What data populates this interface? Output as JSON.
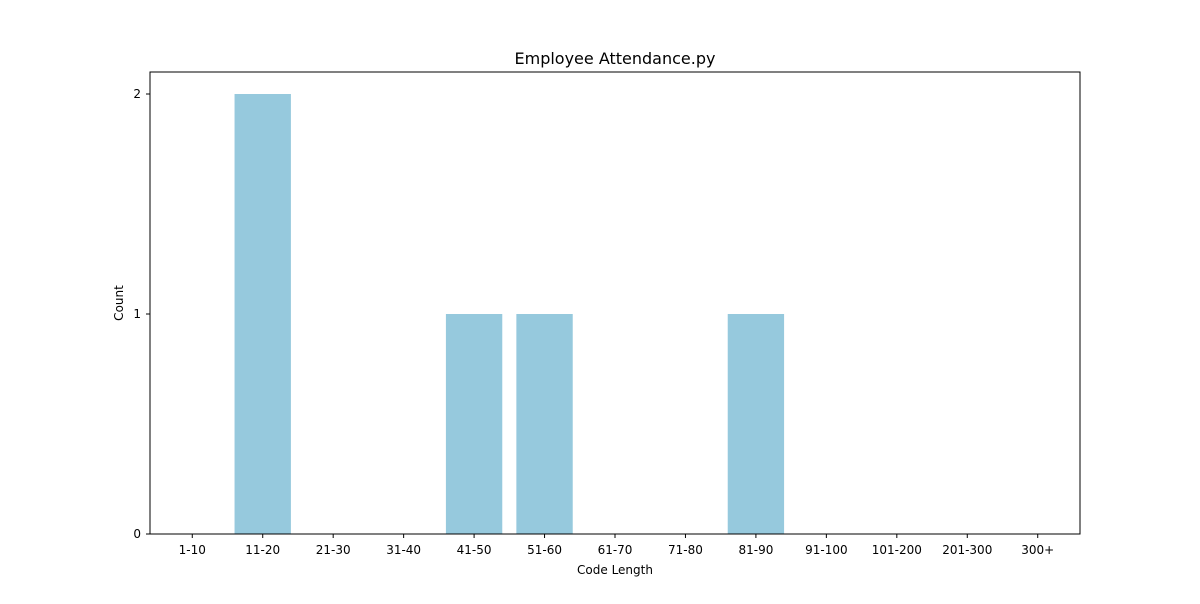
{
  "chart_data": {
    "type": "bar",
    "title": "Employee Attendance.py",
    "xlabel": "Code Length",
    "ylabel": "Count",
    "categories": [
      "1-10",
      "11-20",
      "21-30",
      "31-40",
      "41-50",
      "51-60",
      "61-70",
      "71-80",
      "81-90",
      "91-100",
      "101-200",
      "201-300",
      "300+"
    ],
    "values": [
      0,
      2,
      0,
      0,
      1,
      1,
      0,
      0,
      1,
      0,
      0,
      0,
      0
    ],
    "yticks": [
      0,
      1,
      2
    ],
    "ylim": [
      0,
      2.1
    ],
    "grid": false,
    "legend": "none",
    "bar_color": "#96c9dd"
  }
}
